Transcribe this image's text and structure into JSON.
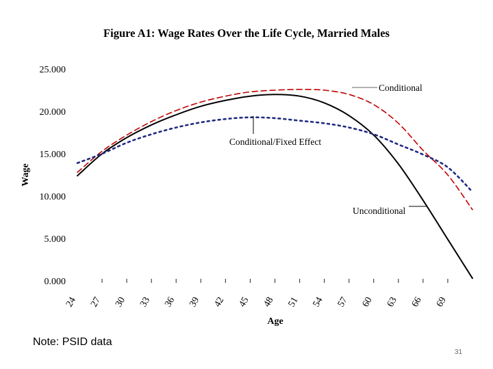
{
  "chart_data": {
    "type": "line",
    "title": "Figure A1:  Wage Rates Over the Life Cycle, Married Males",
    "xlabel": "Age",
    "ylabel": "Wage",
    "ylim": [
      0,
      25
    ],
    "xlim": [
      24,
      72
    ],
    "ytick_labels": [
      "0.000",
      "5.000",
      "10.000",
      "15.000",
      "20.000",
      "25.000"
    ],
    "ytick_values": [
      0,
      5,
      10,
      15,
      20,
      25
    ],
    "xtick_values": [
      24,
      27,
      30,
      33,
      36,
      39,
      42,
      45,
      48,
      51,
      54,
      57,
      60,
      63,
      66,
      69
    ],
    "xtick_labels": [
      "24",
      "27",
      "30",
      "33",
      "36",
      "39",
      "42",
      "45",
      "48",
      "51",
      "54",
      "57",
      "60",
      "63",
      "66",
      "69"
    ],
    "grid": false,
    "series": [
      {
        "name": "Unconditional",
        "color": "#000000",
        "style": "solid",
        "x": [
          24,
          27,
          30,
          33,
          36,
          39,
          42,
          45,
          48,
          51,
          54,
          57,
          60,
          63,
          66,
          69,
          72
        ],
        "values": [
          12.4,
          15.0,
          16.9,
          18.4,
          19.6,
          20.6,
          21.3,
          21.8,
          22.0,
          21.8,
          21.0,
          19.5,
          17.2,
          13.8,
          9.5,
          4.9,
          0.3
        ]
      },
      {
        "name": "Conditional",
        "color": "#c00000",
        "style": "dashed",
        "x": [
          24,
          27,
          30,
          33,
          36,
          39,
          42,
          45,
          48,
          51,
          54,
          57,
          60,
          63,
          66,
          69,
          72
        ],
        "values": [
          12.8,
          15.3,
          17.2,
          18.8,
          20.1,
          21.1,
          21.8,
          22.3,
          22.5,
          22.6,
          22.5,
          22.0,
          20.8,
          18.6,
          15.4,
          12.5,
          8.4
        ]
      },
      {
        "name": "Conditional/Fixed Effect",
        "color": "#1f2a80",
        "style": "dotted",
        "x": [
          24,
          27,
          30,
          33,
          36,
          39,
          42,
          45,
          48,
          51,
          54,
          57,
          60,
          63,
          66,
          69,
          72
        ],
        "values": [
          13.9,
          15.0,
          16.3,
          17.3,
          18.1,
          18.7,
          19.1,
          19.3,
          19.2,
          18.9,
          18.6,
          18.1,
          17.3,
          16.1,
          14.9,
          13.4,
          10.5
        ]
      }
    ],
    "annotations": [
      {
        "text": "Conditional",
        "series": "Conditional"
      },
      {
        "text": "Conditional/Fixed Effect",
        "series": "Conditional/Fixed Effect"
      },
      {
        "text": "Unconditional",
        "series": "Unconditional"
      }
    ]
  },
  "note": "Note:  PSID data",
  "page_number": "31"
}
